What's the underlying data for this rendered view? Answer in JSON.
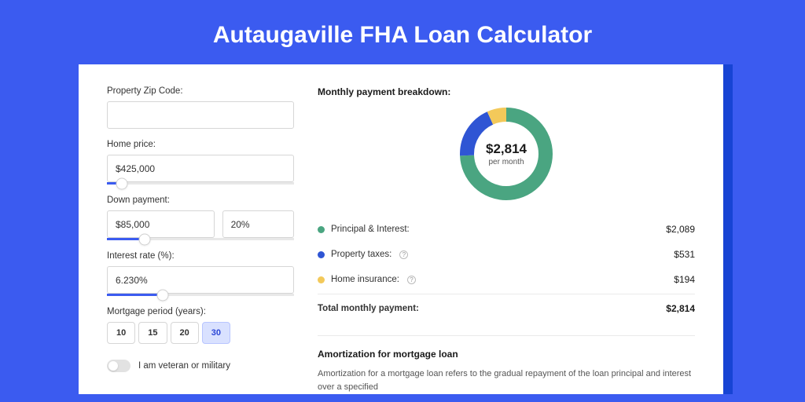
{
  "page": {
    "title": "Autaugaville FHA Loan Calculator",
    "background_color": "#3b5bf0",
    "accent_color": "#3b5bf0",
    "card_background": "#ffffff"
  },
  "form": {
    "zip": {
      "label": "Property Zip Code:",
      "value": ""
    },
    "home_price": {
      "label": "Home price:",
      "value": "$425,000",
      "slider_percent": 8
    },
    "down_payment": {
      "label": "Down payment:",
      "value_amount": "$85,000",
      "value_percent": "20%",
      "slider_percent": 20
    },
    "interest_rate": {
      "label": "Interest rate (%):",
      "value": "6.230%",
      "slider_percent": 30
    },
    "mortgage_period": {
      "label": "Mortgage period (years):",
      "options": [
        "10",
        "15",
        "20",
        "30"
      ],
      "selected": "30"
    },
    "veteran_toggle": {
      "label": "I am veteran or military",
      "on": false
    }
  },
  "breakdown": {
    "title": "Monthly payment breakdown:",
    "donut": {
      "center_value": "$2,814",
      "center_sub": "per month",
      "slices": [
        {
          "key": "principal_interest",
          "value": 2089,
          "color": "#4aa581"
        },
        {
          "key": "property_taxes",
          "value": 531,
          "color": "#2f55d4"
        },
        {
          "key": "home_insurance",
          "value": 194,
          "color": "#f3c95a"
        }
      ],
      "stroke_width": 18
    },
    "items": [
      {
        "label": "Principal & Interest:",
        "value": "$2,089",
        "color": "#4aa581",
        "info": false
      },
      {
        "label": "Property taxes:",
        "value": "$531",
        "color": "#2f55d4",
        "info": true
      },
      {
        "label": "Home insurance:",
        "value": "$194",
        "color": "#f3c95a",
        "info": true
      }
    ],
    "total": {
      "label": "Total monthly payment:",
      "value": "$2,814"
    }
  },
  "amortization": {
    "title": "Amortization for mortgage loan",
    "text": "Amortization for a mortgage loan refers to the gradual repayment of the loan principal and interest over a specified"
  }
}
